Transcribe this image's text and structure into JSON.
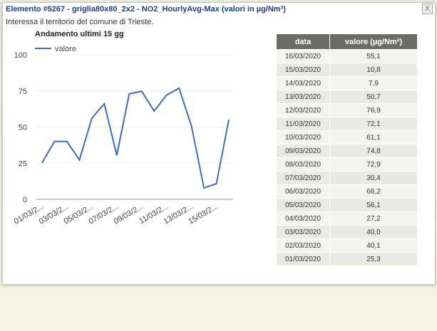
{
  "popup": {
    "title": "Elemento #5267 - griglia80x80_2x2 - NO2_HourlyAvg-Max (valori in µg/Nm³)",
    "close": "X",
    "subtitle": "Interessa il territorio del comune di Trieste."
  },
  "chart_data": {
    "type": "line",
    "title": "Andamento ultimi 15 gg",
    "categories": [
      "01/03/2...",
      null,
      "03/03/2...",
      null,
      "05/03/2...",
      null,
      "07/03/2...",
      null,
      "09/03/2...",
      null,
      "11/03/2...",
      null,
      "13/03/2...",
      null,
      "15/03/2...",
      null
    ],
    "series": [
      {
        "name": "valore",
        "color": "#3d6cc0",
        "values": [
          25.3,
          40.1,
          40.0,
          27.2,
          56.1,
          66.2,
          30.4,
          72.9,
          74.8,
          61.1,
          72.1,
          76.9,
          50.7,
          7.9,
          10.8,
          55.1
        ]
      }
    ],
    "ylim": [
      0,
      100
    ],
    "yticks": [
      0,
      25,
      50,
      75,
      100
    ],
    "grid": true,
    "legend": "top-left"
  },
  "table": {
    "header": [
      "data",
      "valore (µg/Nm³)"
    ],
    "rows": [
      [
        "16/03/2020",
        "55,1"
      ],
      [
        "15/03/2020",
        "10,8"
      ],
      [
        "14/03/2020",
        "7,9"
      ],
      [
        "13/03/2020",
        "50,7"
      ],
      [
        "12/03/2020",
        "76,9"
      ],
      [
        "11/03/2020",
        "72,1"
      ],
      [
        "10/03/2020",
        "61,1"
      ],
      [
        "09/03/2020",
        "74,8"
      ],
      [
        "08/03/2020",
        "72,9"
      ],
      [
        "07/03/2020",
        "30,4"
      ],
      [
        "06/03/2020",
        "66,2"
      ],
      [
        "05/03/2020",
        "56,1"
      ],
      [
        "04/03/2020",
        "27,2"
      ],
      [
        "03/03/2020",
        "40,0"
      ],
      [
        "02/03/2020",
        "40,1"
      ],
      [
        "01/03/2020",
        "25,3"
      ]
    ]
  }
}
